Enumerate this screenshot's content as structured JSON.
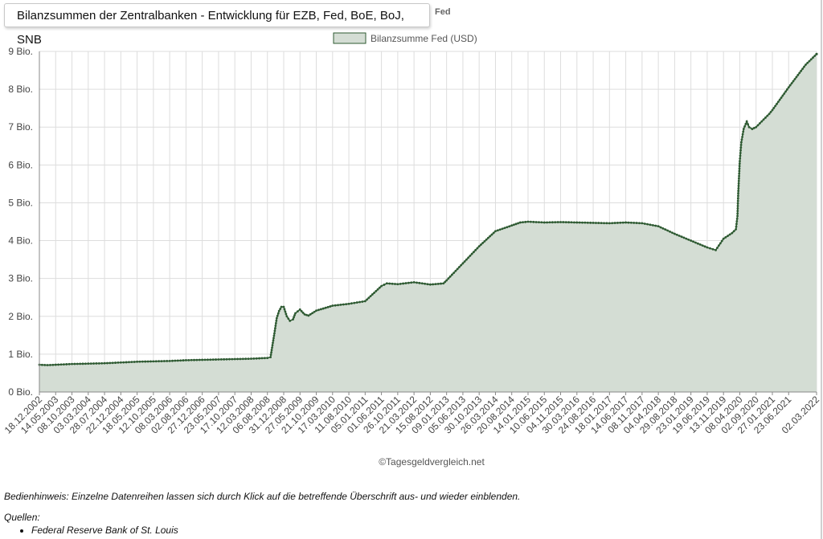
{
  "tabs": {
    "active_title": "Bilanzsummen der Zentralbanken - Entwicklung für EZB, Fed, BoE, BoJ, SNB",
    "behind_fragment": "Fed"
  },
  "hint": "Bedienhinweis: Einzelne Datenreihen lassen sich durch Klick auf die betreffende Überschrift aus- und wieder einblenden.",
  "sources": {
    "heading": "Quellen:",
    "items": [
      "Federal Reserve Bank of St. Louis"
    ]
  },
  "colors": {
    "series_line": "#2e5a32",
    "series_fill": "#d4ddd4",
    "grid": "#dddddd",
    "axis": "#888888"
  },
  "chart_data": {
    "type": "area",
    "title": "",
    "xlabel": "",
    "ylabel": "",
    "credit": "©Tagesgeldvergleich.net",
    "legend": {
      "position": "top-center",
      "entries": [
        "Bilanzsumme Fed (USD)"
      ]
    },
    "grid": true,
    "xlim": [
      "18.12.2002",
      "02.03.2022"
    ],
    "ylim": [
      0,
      9
    ],
    "y_ticks": [
      0,
      1,
      2,
      3,
      4,
      5,
      6,
      7,
      8,
      9
    ],
    "y_tick_labels": [
      "0 Bio.",
      "1 Bio.",
      "2 Bio.",
      "3 Bio.",
      "4 Bio.",
      "5 Bio.",
      "6 Bio.",
      "7 Bio.",
      "8 Bio.",
      "9 Bio."
    ],
    "x_tick_labels": [
      "18.12.2002",
      "14.05.2003",
      "08.10.2003",
      "03.03.2004",
      "28.07.2004",
      "22.12.2004",
      "18.05.2005",
      "12.10.2005",
      "08.03.2006",
      "02.08.2006",
      "27.12.2006",
      "23.05.2007",
      "17.10.2007",
      "12.03.2008",
      "06.08.2008",
      "31.12.2008",
      "27.05.2009",
      "21.10.2009",
      "17.03.2010",
      "11.08.2010",
      "05.01.2011",
      "01.06.2011",
      "26.10.2011",
      "21.03.2012",
      "15.08.2012",
      "09.01.2013",
      "05.06.2013",
      "30.10.2013",
      "26.03.2014",
      "20.08.2014",
      "14.01.2015",
      "10.06.2015",
      "04.11.2015",
      "30.03.2016",
      "24.08.2016",
      "18.01.2017",
      "14.06.2017",
      "08.11.2017",
      "04.04.2018",
      "29.08.2018",
      "23.01.2019",
      "19.06.2019",
      "13.11.2019",
      "08.04.2020",
      "02.09.2020",
      "27.01.2021",
      "23.06.2021",
      "02.03.2022"
    ],
    "series": [
      {
        "name": "Bilanzsumme Fed (USD)",
        "unit": "Bio.",
        "points": [
          [
            "18.12.2002",
            0.72
          ],
          [
            "01.03.2003",
            0.71
          ],
          [
            "14.05.2003",
            0.72
          ],
          [
            "08.10.2003",
            0.74
          ],
          [
            "03.03.2004",
            0.75
          ],
          [
            "28.07.2004",
            0.76
          ],
          [
            "22.12.2004",
            0.78
          ],
          [
            "18.05.2005",
            0.8
          ],
          [
            "12.10.2005",
            0.81
          ],
          [
            "08.03.2006",
            0.82
          ],
          [
            "02.08.2006",
            0.84
          ],
          [
            "27.12.2006",
            0.85
          ],
          [
            "23.05.2007",
            0.86
          ],
          [
            "17.10.2007",
            0.87
          ],
          [
            "12.03.2008",
            0.88
          ],
          [
            "06.08.2008",
            0.9
          ],
          [
            "03.09.2008",
            0.92
          ],
          [
            "24.09.2008",
            1.3
          ],
          [
            "08.10.2008",
            1.55
          ],
          [
            "29.10.2008",
            1.95
          ],
          [
            "19.11.2008",
            2.14
          ],
          [
            "10.12.2008",
            2.25
          ],
          [
            "31.12.2008",
            2.25
          ],
          [
            "28.01.2009",
            2.0
          ],
          [
            "25.02.2009",
            1.88
          ],
          [
            "25.03.2009",
            1.92
          ],
          [
            "15.04.2009",
            2.08
          ],
          [
            "27.05.2009",
            2.18
          ],
          [
            "08.07.2009",
            2.05
          ],
          [
            "12.08.2009",
            2.02
          ],
          [
            "21.10.2009",
            2.15
          ],
          [
            "17.03.2010",
            2.28
          ],
          [
            "11.08.2010",
            2.33
          ],
          [
            "05.01.2011",
            2.4
          ],
          [
            "01.06.2011",
            2.8
          ],
          [
            "20.07.2011",
            2.87
          ],
          [
            "26.10.2011",
            2.85
          ],
          [
            "21.03.2012",
            2.9
          ],
          [
            "15.08.2012",
            2.84
          ],
          [
            "12.12.2012",
            2.87
          ],
          [
            "09.01.2013",
            2.95
          ],
          [
            "05.06.2013",
            3.4
          ],
          [
            "30.10.2013",
            3.85
          ],
          [
            "26.03.2014",
            4.25
          ],
          [
            "20.08.2014",
            4.4
          ],
          [
            "05.11.2014",
            4.48
          ],
          [
            "14.01.2015",
            4.5
          ],
          [
            "10.06.2015",
            4.48
          ],
          [
            "04.11.2015",
            4.49
          ],
          [
            "30.03.2016",
            4.48
          ],
          [
            "24.08.2016",
            4.47
          ],
          [
            "18.01.2017",
            4.46
          ],
          [
            "14.06.2017",
            4.48
          ],
          [
            "08.11.2017",
            4.46
          ],
          [
            "04.04.2018",
            4.38
          ],
          [
            "29.08.2018",
            4.18
          ],
          [
            "23.01.2019",
            4.0
          ],
          [
            "19.06.2019",
            3.82
          ],
          [
            "04.09.2019",
            3.75
          ],
          [
            "13.11.2019",
            4.05
          ],
          [
            "29.01.2020",
            4.2
          ],
          [
            "04.03.2020",
            4.3
          ],
          [
            "18.03.2020",
            4.65
          ],
          [
            "25.03.2020",
            5.25
          ],
          [
            "08.04.2020",
            6.1
          ],
          [
            "22.04.2020",
            6.6
          ],
          [
            "13.05.2020",
            6.95
          ],
          [
            "10.06.2020",
            7.15
          ],
          [
            "01.07.2020",
            7.0
          ],
          [
            "29.07.2020",
            6.95
          ],
          [
            "02.09.2020",
            7.0
          ],
          [
            "30.12.2020",
            7.35
          ],
          [
            "27.01.2021",
            7.45
          ],
          [
            "23.06.2021",
            8.05
          ],
          [
            "24.11.2021",
            8.65
          ],
          [
            "02.03.2022",
            8.93
          ]
        ]
      }
    ]
  }
}
